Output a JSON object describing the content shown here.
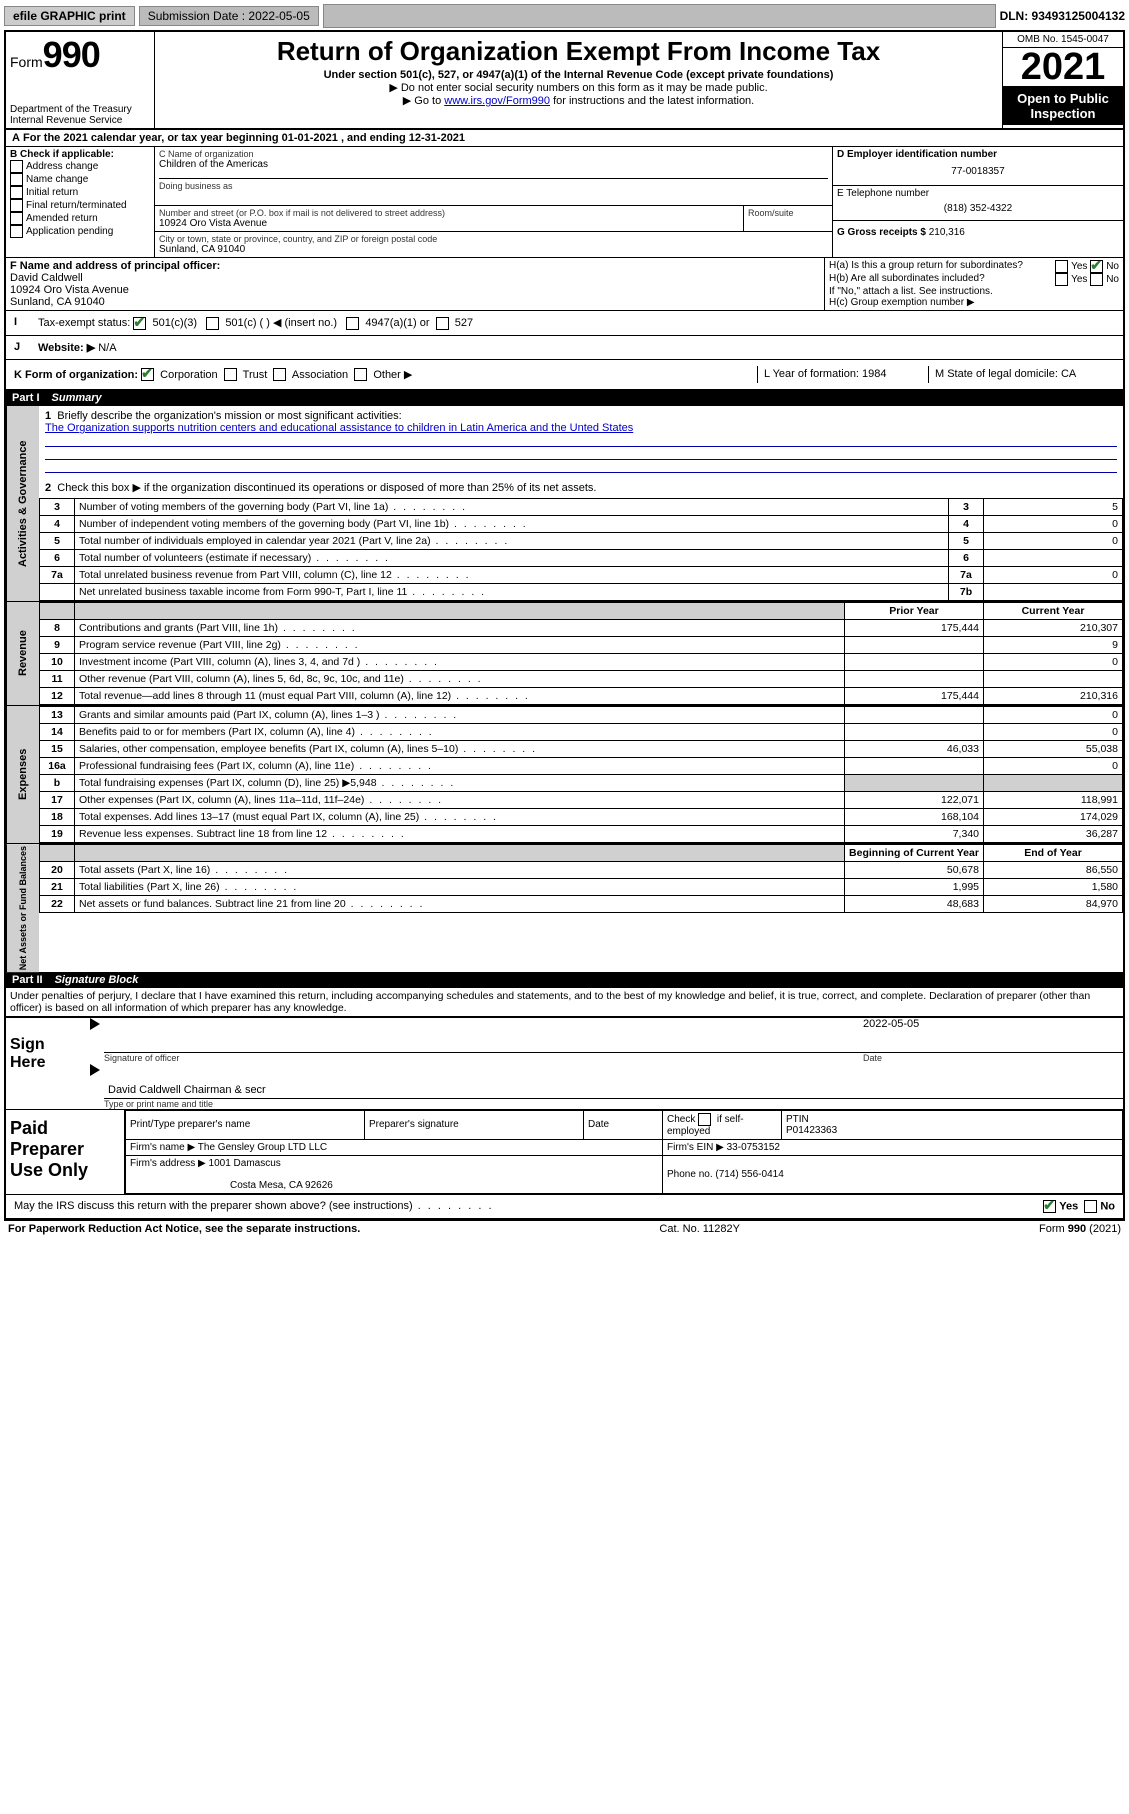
{
  "topbar": {
    "efile": "efile GRAPHIC print",
    "submission_label": "Submission Date : 2022-05-05",
    "dln": "DLN: 93493125004132"
  },
  "header": {
    "form_word": "Form",
    "form_num": "990",
    "dept": "Department of the Treasury",
    "irs": "Internal Revenue Service",
    "title": "Return of Organization Exempt From Income Tax",
    "subtitle": "Under section 501(c), 527, or 4947(a)(1) of the Internal Revenue Code (except private foundations)",
    "note1": "▶ Do not enter social security numbers on this form as it may be made public.",
    "note2_pre": "▶ Go to ",
    "note2_link": "www.irs.gov/Form990",
    "note2_post": " for instructions and the latest information.",
    "omb": "OMB No. 1545-0047",
    "year": "2021",
    "open": "Open to Public Inspection"
  },
  "period": {
    "line": "For the 2021 calendar year, or tax year beginning 01-01-2021   , and ending 12-31-2021"
  },
  "boxB": {
    "label": "B Check if applicable:",
    "items": [
      "Address change",
      "Name change",
      "Initial return",
      "Final return/terminated",
      "Amended return",
      "Application pending"
    ]
  },
  "boxC": {
    "label": "C Name of organization",
    "name": "Children of the Americas",
    "dba_label": "Doing business as",
    "street_label": "Number and street (or P.O. box if mail is not delivered to street address)",
    "room_label": "Room/suite",
    "street": "10924 Oro Vista Avenue",
    "city_label": "City or town, state or province, country, and ZIP or foreign postal code",
    "city": "Sunland, CA  91040"
  },
  "boxD": {
    "label": "D Employer identification number",
    "ein": "77-0018357"
  },
  "boxE": {
    "label": "E Telephone number",
    "phone": "(818) 352-4322"
  },
  "boxG": {
    "label": "G Gross receipts $ ",
    "amount": "210,316"
  },
  "boxF": {
    "label": "F Name and address of principal officer:",
    "name": "David Caldwell",
    "street": "10924 Oro Vista Avenue",
    "city": "Sunland, CA  91040"
  },
  "boxH": {
    "a_label": "H(a)  Is this a group return for subordinates?",
    "a_no_checked": true,
    "b_label": "H(b)  Are all subordinates included?",
    "b_note": "If \"No,\" attach a list. See instructions.",
    "c_label": "H(c)  Group exemption number ▶"
  },
  "boxI": {
    "label": "Tax-exempt status:",
    "c3": "501(c)(3)",
    "c": "501(c) (   ) ◀ (insert no.)",
    "a1": "4947(a)(1) or",
    "s527": "527"
  },
  "boxJ": {
    "label": "Website: ▶",
    "val": "N/A"
  },
  "boxK": {
    "label": "K Form of organization:",
    "corp": "Corporation",
    "trust": "Trust",
    "assoc": "Association",
    "other": "Other ▶"
  },
  "boxL": {
    "label": "L Year of formation: ",
    "val": "1984"
  },
  "boxM": {
    "label": "M State of legal domicile: ",
    "val": "CA"
  },
  "partI": {
    "num": "Part I",
    "title": "Summary"
  },
  "summary": {
    "q1_label": "Briefly describe the organization's mission or most significant activities:",
    "q1_text": "The Organization supports nutrition centers and educational assistance to children in Latin America and the Unted States",
    "q2": "Check this box ▶       if the organization discontinued its operations or disposed of more than 25% of its net assets.",
    "rows_gov": [
      {
        "n": "3",
        "t": "Number of voting members of the governing body (Part VI, line 1a)",
        "box": "3",
        "v": "5"
      },
      {
        "n": "4",
        "t": "Number of independent voting members of the governing body (Part VI, line 1b)",
        "box": "4",
        "v": "0"
      },
      {
        "n": "5",
        "t": "Total number of individuals employed in calendar year 2021 (Part V, line 2a)",
        "box": "5",
        "v": "0"
      },
      {
        "n": "6",
        "t": "Total number of volunteers (estimate if necessary)",
        "box": "6",
        "v": ""
      },
      {
        "n": "7a",
        "t": "Total unrelated business revenue from Part VIII, column (C), line 12",
        "box": "7a",
        "v": "0"
      },
      {
        "n": "",
        "t": "Net unrelated business taxable income from Form 990-T, Part I, line 11",
        "box": "7b",
        "v": ""
      }
    ],
    "col_prior": "Prior Year",
    "col_current": "Current Year",
    "rows_rev": [
      {
        "n": "8",
        "t": "Contributions and grants (Part VIII, line 1h)",
        "p": "175,444",
        "c": "210,307"
      },
      {
        "n": "9",
        "t": "Program service revenue (Part VIII, line 2g)",
        "p": "",
        "c": "9"
      },
      {
        "n": "10",
        "t": "Investment income (Part VIII, column (A), lines 3, 4, and 7d )",
        "p": "",
        "c": "0"
      },
      {
        "n": "11",
        "t": "Other revenue (Part VIII, column (A), lines 5, 6d, 8c, 9c, 10c, and 11e)",
        "p": "",
        "c": ""
      },
      {
        "n": "12",
        "t": "Total revenue—add lines 8 through 11 (must equal Part VIII, column (A), line 12)",
        "p": "175,444",
        "c": "210,316"
      }
    ],
    "rows_exp": [
      {
        "n": "13",
        "t": "Grants and similar amounts paid (Part IX, column (A), lines 1–3 )",
        "p": "",
        "c": "0"
      },
      {
        "n": "14",
        "t": "Benefits paid to or for members (Part IX, column (A), line 4)",
        "p": "",
        "c": "0"
      },
      {
        "n": "15",
        "t": "Salaries, other compensation, employee benefits (Part IX, column (A), lines 5–10)",
        "p": "46,033",
        "c": "55,038"
      },
      {
        "n": "16a",
        "t": "Professional fundraising fees (Part IX, column (A), line 11e)",
        "p": "",
        "c": "0"
      },
      {
        "n": "b",
        "t": "Total fundraising expenses (Part IX, column (D), line 25) ▶5,948",
        "p": "shade",
        "c": "shade"
      },
      {
        "n": "17",
        "t": "Other expenses (Part IX, column (A), lines 11a–11d, 11f–24e)",
        "p": "122,071",
        "c": "118,991"
      },
      {
        "n": "18",
        "t": "Total expenses. Add lines 13–17 (must equal Part IX, column (A), line 25)",
        "p": "168,104",
        "c": "174,029"
      },
      {
        "n": "19",
        "t": "Revenue less expenses. Subtract line 18 from line 12",
        "p": "7,340",
        "c": "36,287"
      }
    ],
    "col_begin": "Beginning of Current Year",
    "col_end": "End of Year",
    "rows_net": [
      {
        "n": "20",
        "t": "Total assets (Part X, line 16)",
        "p": "50,678",
        "c": "86,550"
      },
      {
        "n": "21",
        "t": "Total liabilities (Part X, line 26)",
        "p": "1,995",
        "c": "1,580"
      },
      {
        "n": "22",
        "t": "Net assets or fund balances. Subtract line 21 from line 20",
        "p": "48,683",
        "c": "84,970"
      }
    ],
    "tab_gov": "Activities & Governance",
    "tab_rev": "Revenue",
    "tab_exp": "Expenses",
    "tab_net": "Net Assets or Fund Balances"
  },
  "partII": {
    "num": "Part II",
    "title": "Signature Block"
  },
  "penalties": "Under penalties of perjury, I declare that I have examined this return, including accompanying schedules and statements, and to the best of my knowledge and belief, it is true, correct, and complete. Declaration of preparer (other than officer) is based on all information of which preparer has any knowledge.",
  "sign": {
    "here": "Sign Here",
    "sig_officer": "Signature of officer",
    "date": "Date",
    "date_val": "2022-05-05",
    "name": "David Caldwell Chairman & secr",
    "name_label": "Type or print name and title"
  },
  "paid": {
    "title": "Paid Preparer Use Only",
    "h1": "Print/Type preparer's name",
    "h2": "Preparer's signature",
    "h3": "Date",
    "h4_check": "Check          if self-employed",
    "h5": "PTIN",
    "ptin": "P01423363",
    "firm_label": "Firm's name     ▶",
    "firm": "The Gensley Group LTD LLC",
    "ein_label": "Firm's EIN ▶",
    "ein": "33-0753152",
    "addr_label": "Firm's address ▶",
    "addr1": "1001 Damascus",
    "addr2": "Costa Mesa, CA  92626",
    "phone_label": "Phone no. ",
    "phone": "(714) 556-0414"
  },
  "discuss": {
    "q": "May the IRS discuss this return with the preparer shown above? (see instructions)",
    "yes": "Yes",
    "no": "No"
  },
  "footer": {
    "left": "For Paperwork Reduction Act Notice, see the separate instructions.",
    "mid": "Cat. No. 11282Y",
    "right_pre": "Form ",
    "right_form": "990",
    "right_post": " (2021)"
  },
  "colors": {
    "link": "#0000cc",
    "shade": "#d0d0d0",
    "check": "#2e7d32"
  }
}
